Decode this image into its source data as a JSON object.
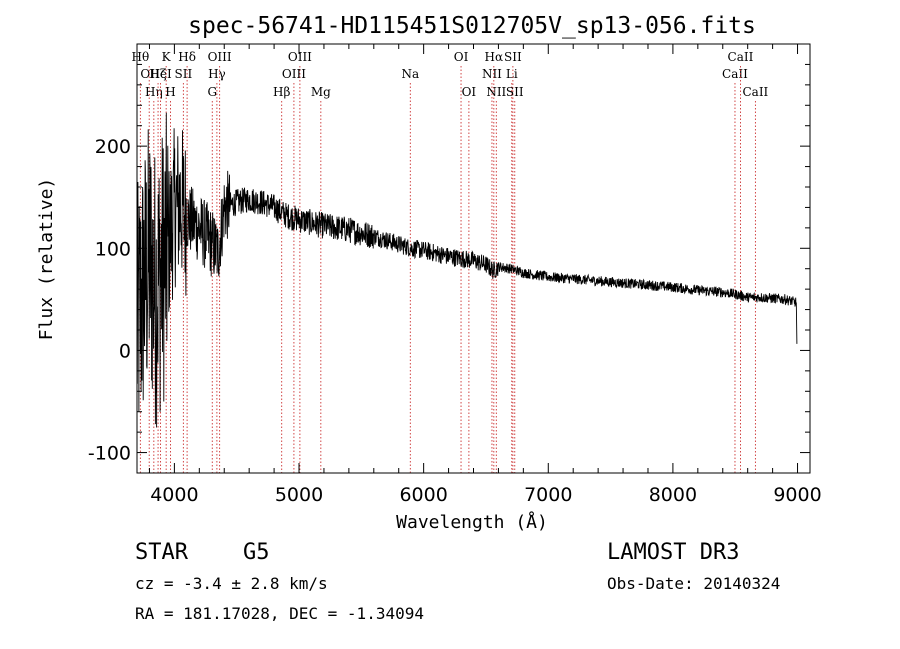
{
  "chart_data": {
    "type": "line",
    "title": "spec-56741-HD115451S012705V_sp13-056.fits",
    "xlabel": "Wavelength (Å)",
    "ylabel": "Flux (relative)",
    "xlim": [
      3700,
      9100
    ],
    "ylim": [
      -120,
      300
    ],
    "xticks": [
      4000,
      5000,
      6000,
      7000,
      8000,
      9000
    ],
    "yticks": [
      -100,
      0,
      100,
      200
    ],
    "spectrum_anchor_points": {
      "x": [
        3700,
        3750,
        3800,
        3850,
        3900,
        3950,
        4000,
        4050,
        4100,
        4200,
        4300,
        4350,
        4400,
        4500,
        4600,
        4700,
        4800,
        4900,
        5000,
        5100,
        5200,
        5300,
        5400,
        5500,
        5600,
        5700,
        5800,
        5900,
        6000,
        6100,
        6200,
        6300,
        6400,
        6500,
        6560,
        6600,
        6700,
        6800,
        7000,
        7200,
        7400,
        7600,
        7800,
        8000,
        8200,
        8400,
        8500,
        8600,
        8700,
        8800,
        8900,
        8990,
        8995
      ],
      "y": [
        20,
        60,
        90,
        60,
        80,
        100,
        140,
        145,
        130,
        120,
        105,
        95,
        140,
        145,
        148,
        145,
        140,
        132,
        128,
        125,
        122,
        120,
        118,
        115,
        112,
        108,
        104,
        100,
        98,
        95,
        92,
        90,
        88,
        84,
        78,
        82,
        80,
        76,
        72,
        70,
        68,
        66,
        64,
        62,
        59,
        57,
        55,
        52,
        52,
        51,
        50,
        47,
        5
      ]
    },
    "lines": [
      {
        "x": 3727,
        "label": "OII",
        "row": 2,
        "ha": "start"
      },
      {
        "x": 3798,
        "label": "Hθ",
        "row": 1,
        "ha": "end"
      },
      {
        "x": 3835,
        "label": "Hη",
        "row": 3,
        "ha": "middle"
      },
      {
        "x": 3869,
        "label": "Hζ",
        "row": 2,
        "ha": "middle"
      },
      {
        "x": 3889,
        "label": "HeI",
        "row": 2,
        "ha": "middle"
      },
      {
        "x": 3934,
        "label": "K",
        "row": 1,
        "ha": "middle"
      },
      {
        "x": 3969,
        "label": "H",
        "row": 3,
        "ha": "middle"
      },
      {
        "x": 4072,
        "label": "SII",
        "row": 2,
        "ha": "middle"
      },
      {
        "x": 4102,
        "label": "Hδ",
        "row": 1,
        "ha": "middle"
      },
      {
        "x": 4304,
        "label": "G",
        "row": 3,
        "ha": "middle"
      },
      {
        "x": 4341,
        "label": "Hγ",
        "row": 2,
        "ha": "middle"
      },
      {
        "x": 4363,
        "label": "OIII",
        "row": 1,
        "ha": "middle"
      },
      {
        "x": 4861,
        "label": "Hβ",
        "row": 3,
        "ha": "middle"
      },
      {
        "x": 4959,
        "label": "OIII",
        "row": 2,
        "ha": "middle"
      },
      {
        "x": 5007,
        "label": "OIII",
        "row": 1,
        "ha": "middle"
      },
      {
        "x": 5175,
        "label": "Mg",
        "row": 3,
        "ha": "middle"
      },
      {
        "x": 5893,
        "label": "Na",
        "row": 2,
        "ha": "middle"
      },
      {
        "x": 6300,
        "label": "OI",
        "row": 1,
        "ha": "middle"
      },
      {
        "x": 6363,
        "label": "OI",
        "row": 3,
        "ha": "middle"
      },
      {
        "x": 6548,
        "label": "NII",
        "row": 2,
        "ha": "middle"
      },
      {
        "x": 6563,
        "label": "Hα",
        "row": 1,
        "ha": "middle"
      },
      {
        "x": 6583,
        "label": "NII",
        "row": 3,
        "ha": "middle"
      },
      {
        "x": 6707,
        "label": "Li",
        "row": 2,
        "ha": "middle"
      },
      {
        "x": 6716,
        "label": "SII",
        "row": 1,
        "ha": "middle"
      },
      {
        "x": 6731,
        "label": "SII",
        "row": 3,
        "ha": "middle"
      },
      {
        "x": 8498,
        "label": "CaII",
        "row": 2,
        "ha": "middle"
      },
      {
        "x": 8542,
        "label": "CaII",
        "row": 1,
        "ha": "middle"
      },
      {
        "x": 8662,
        "label": "CaII",
        "row": 3,
        "ha": "middle"
      }
    ]
  },
  "info": {
    "class_label": "STAR",
    "subclass": "G5",
    "survey": "LAMOST DR3",
    "velocity": "cz = -3.4 ± 2.8 km/s",
    "obs_date": "Obs-Date: 20140324",
    "coords": "RA = 181.17028, DEC =  -1.34094"
  },
  "colors": {
    "line_marker": "#cc3333",
    "spectrum": "#000000",
    "axis": "#000000"
  }
}
